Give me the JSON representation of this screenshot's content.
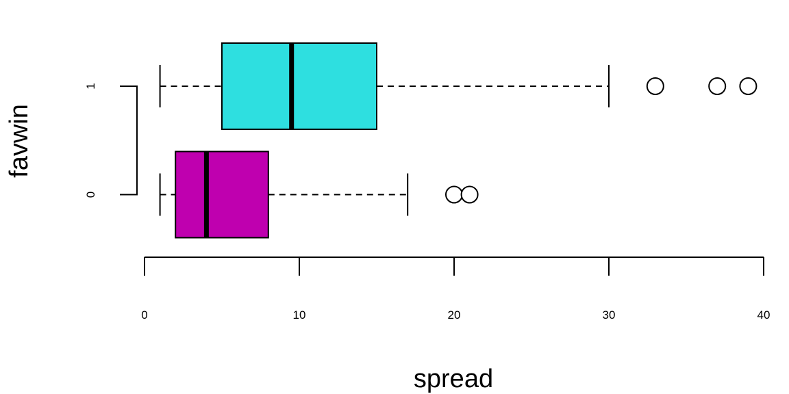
{
  "chart_data": {
    "type": "boxplot",
    "orientation": "horizontal",
    "xlabel": "spread",
    "ylabel": "favwin",
    "xlim": [
      0,
      40
    ],
    "x_ticks": [
      "0",
      "10",
      "20",
      "30",
      "40"
    ],
    "y_ticks": [
      "0",
      "1"
    ],
    "grid": false,
    "groups": [
      {
        "label": "0",
        "color": "#BF00AF",
        "whisker_low": 1,
        "q1": 2,
        "median": 4,
        "q3": 8,
        "whisker_high": 17,
        "outliers": [
          20,
          21
        ]
      },
      {
        "label": "1",
        "color": "#2EDFE0",
        "whisker_low": 1,
        "q1": 5,
        "median": 9.5,
        "q3": 15,
        "whisker_high": 30,
        "outliers": [
          33,
          37,
          39
        ]
      }
    ]
  }
}
